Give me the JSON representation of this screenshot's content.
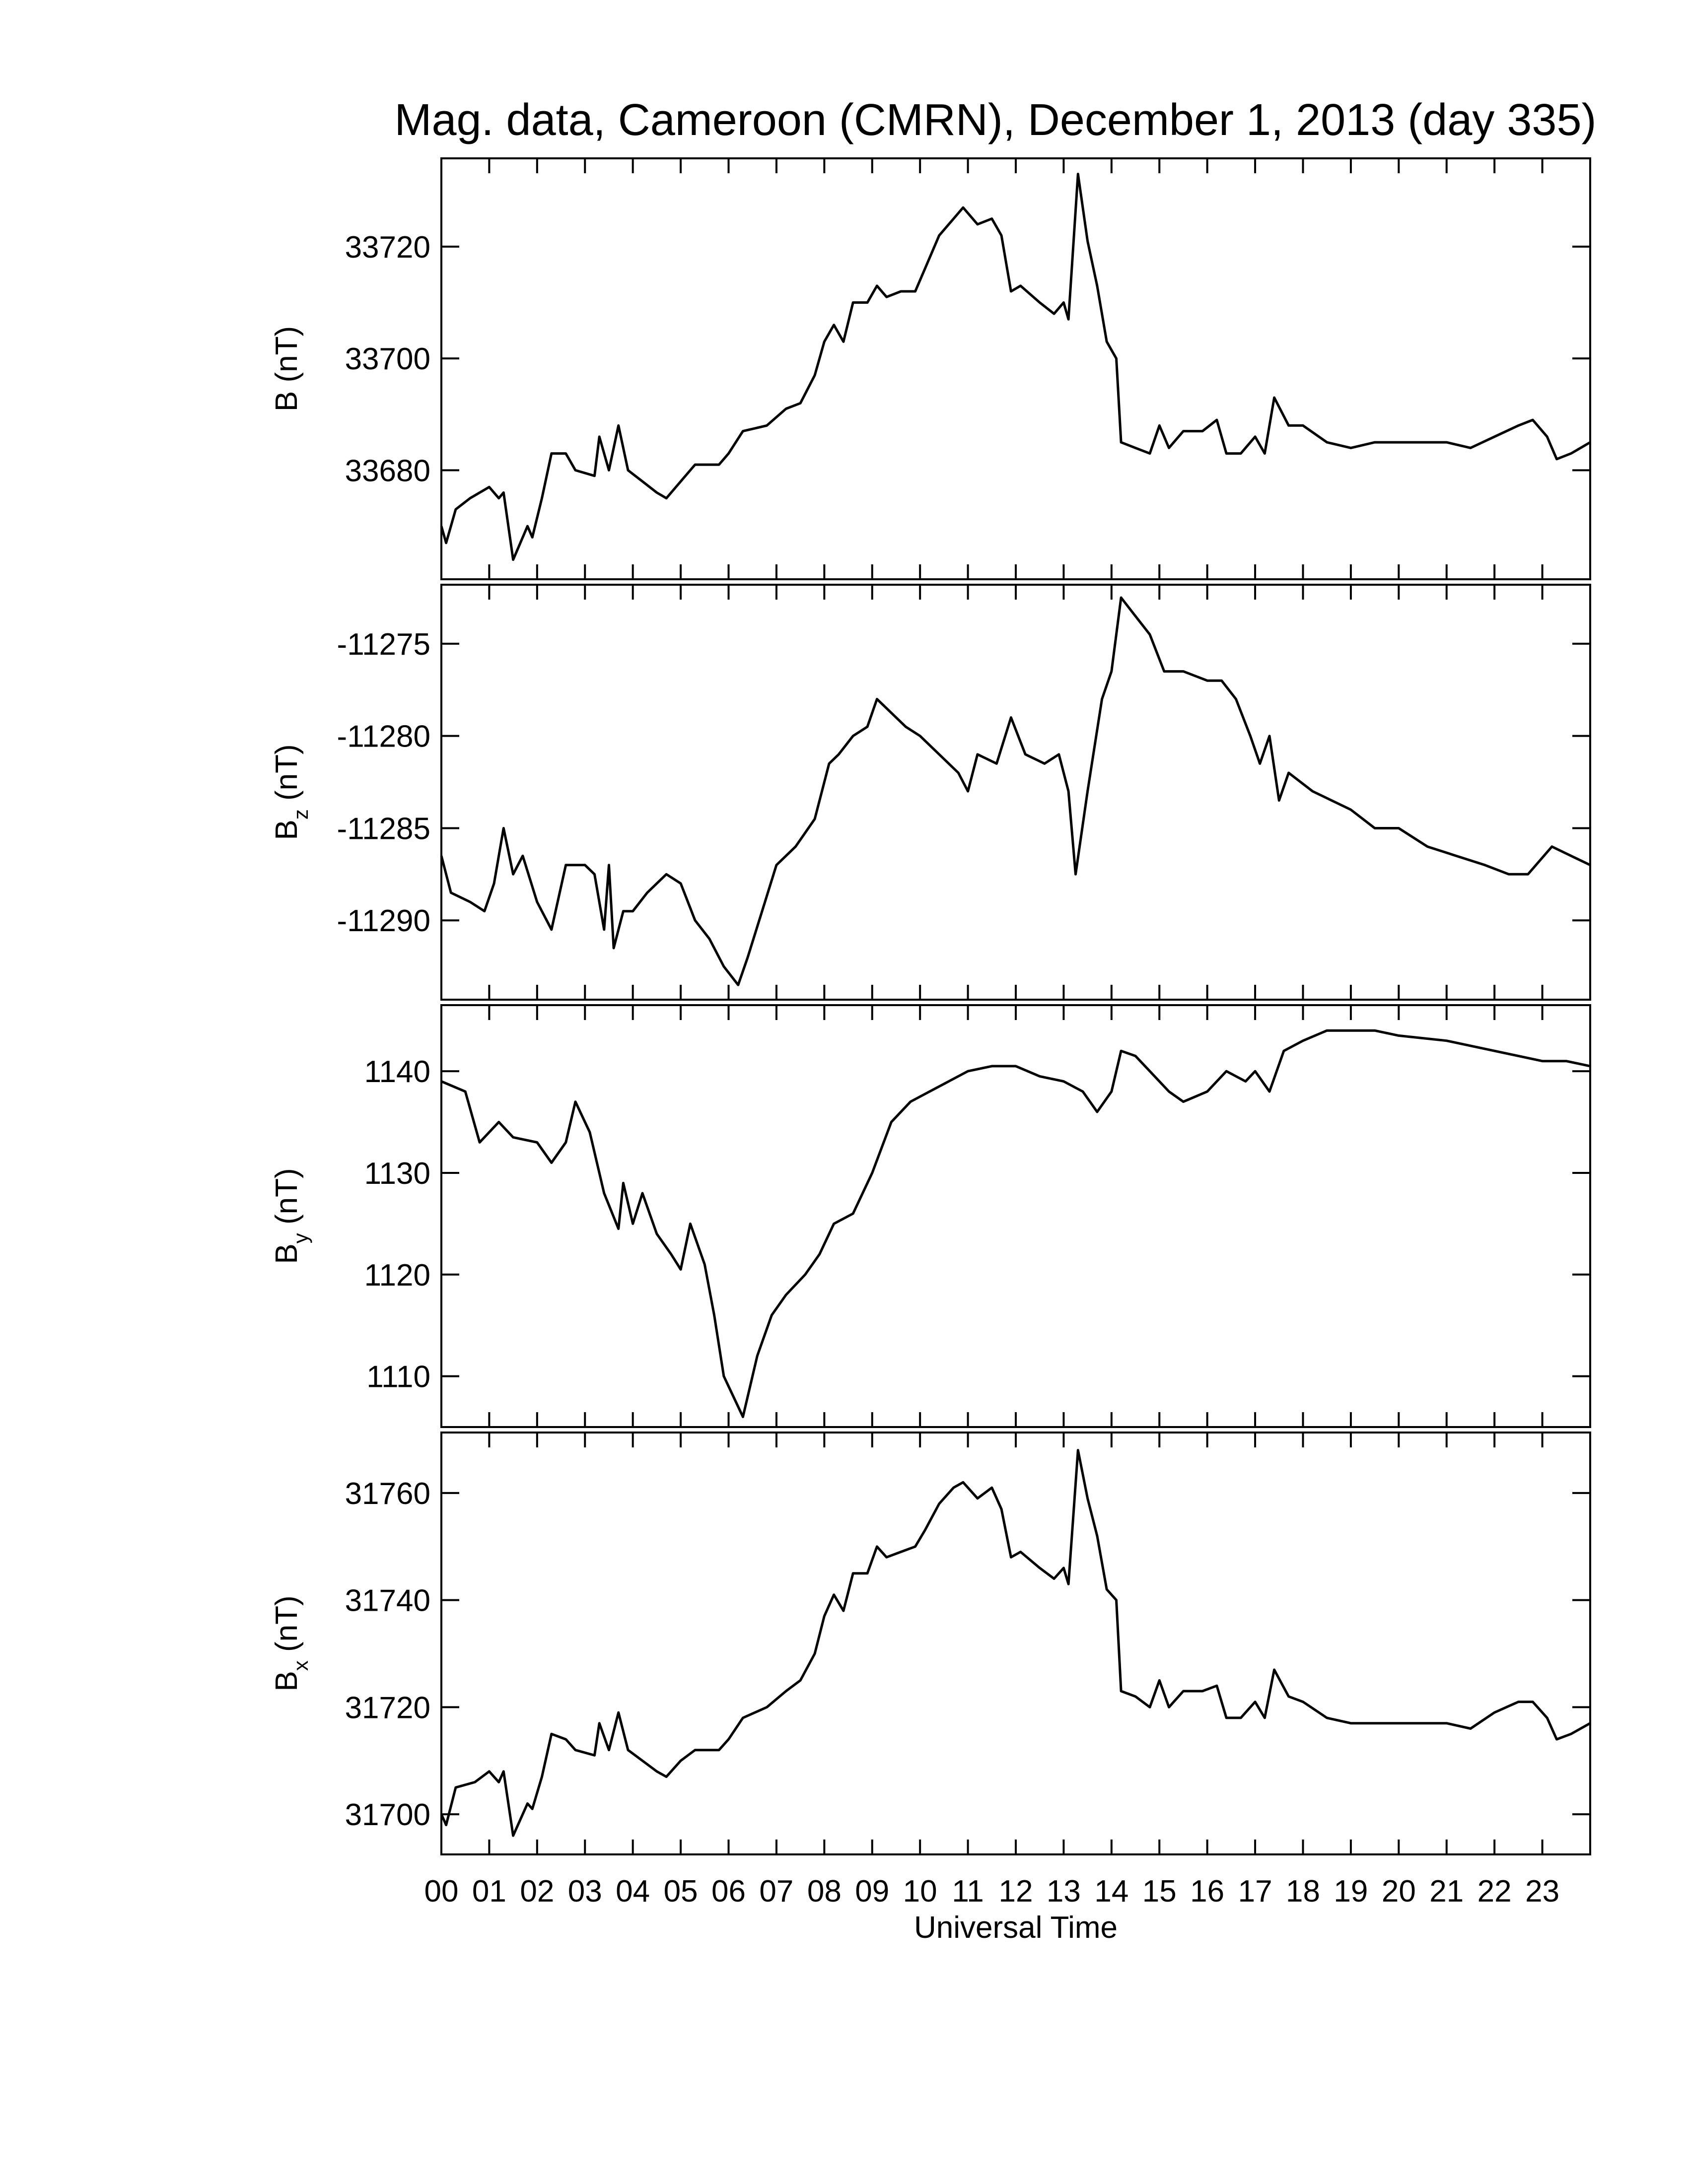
{
  "chart_data": [
    {
      "type": "line",
      "title": "Mag. data, Cameroon (CMRN), December 1, 2013 (day 335)",
      "ylabel": {
        "base": "B",
        "rest": " (nT)"
      },
      "color": "#000000",
      "xlim": [
        0,
        24
      ],
      "xticks": [
        {
          "value": 0,
          "label": "00"
        },
        {
          "value": 1,
          "label": "01"
        },
        {
          "value": 2,
          "label": "02"
        },
        {
          "value": 3,
          "label": "03"
        },
        {
          "value": 4,
          "label": "04"
        },
        {
          "value": 5,
          "label": "05"
        },
        {
          "value": 6,
          "label": "06"
        },
        {
          "value": 7,
          "label": "07"
        },
        {
          "value": 8,
          "label": "08"
        },
        {
          "value": 9,
          "label": "09"
        },
        10,
        11,
        12,
        13,
        14,
        15,
        16,
        17,
        18,
        19,
        20,
        21,
        22,
        23
      ],
      "ylim": [
        33660.5,
        33735.8
      ],
      "yticks": [
        33680,
        33700,
        33720
      ],
      "x": [
        0,
        0.1,
        0.3,
        0.6,
        1.0,
        1.2,
        1.3,
        1.5,
        1.8,
        1.9,
        2.1,
        2.3,
        2.6,
        2.8,
        3.2,
        3.3,
        3.5,
        3.7,
        3.9,
        4.2,
        4.5,
        4.7,
        5.0,
        5.3,
        5.8,
        6.0,
        6.3,
        6.8,
        7.2,
        7.5,
        7.8,
        8.0,
        8.2,
        8.4,
        8.6,
        8.9,
        9.1,
        9.3,
        9.6,
        9.9,
        10.1,
        10.4,
        10.7,
        10.9,
        11.2,
        11.5,
        11.7,
        11.9,
        12.1,
        12.5,
        12.8,
        13.0,
        13.1,
        13.3,
        13.5,
        13.7,
        13.9,
        14.1,
        14.2,
        14.5,
        14.8,
        15.0,
        15.2,
        15.5,
        15.9,
        16.2,
        16.4,
        16.7,
        17.0,
        17.2,
        17.4,
        17.7,
        18.0,
        18.5,
        19.0,
        19.5,
        20.0,
        21.0,
        21.5,
        22.0,
        22.5,
        22.8,
        23.1,
        23.3,
        23.6,
        24.0
      ],
      "values": [
        33670,
        33667,
        33673,
        33675,
        33677,
        33675,
        33676,
        33664,
        33670,
        33668,
        33675,
        33683,
        33683,
        33680,
        33679,
        33686,
        33680,
        33688,
        33680,
        33678,
        33676,
        33675,
        33678,
        33681,
        33681,
        33683,
        33687,
        33688,
        33691,
        33692,
        33697,
        33703,
        33706,
        33703,
        33710,
        33710,
        33713,
        33711,
        33712,
        33712,
        33716,
        33722,
        33725,
        33727,
        33724,
        33725,
        33722,
        33712,
        33713,
        33710,
        33708,
        33710,
        33707,
        33733,
        33721,
        33713,
        33703,
        33700,
        33685,
        33684,
        33683,
        33688,
        33684,
        33687,
        33687,
        33689,
        33683,
        33683,
        33686,
        33683,
        33693,
        33688,
        33688,
        33685,
        33684,
        33685,
        33685,
        33685,
        33684,
        33686,
        33688,
        33689,
        33686,
        33682,
        33683,
        33685
      ]
    },
    {
      "type": "line",
      "ylabel": {
        "base": "B",
        "sub": "z",
        "rest": " (nT)"
      },
      "color": "#000000",
      "xlim": [
        0,
        24
      ],
      "xticks": [
        0,
        1,
        2,
        3,
        4,
        5,
        6,
        7,
        8,
        9,
        10,
        11,
        12,
        13,
        14,
        15,
        16,
        17,
        18,
        19,
        20,
        21,
        22,
        23
      ],
      "ylim": [
        -11294.3,
        -11271.8
      ],
      "yticks": [
        -11290,
        -11285,
        -11280,
        -11275
      ],
      "x": [
        0,
        0.2,
        0.6,
        0.9,
        1.1,
        1.3,
        1.5,
        1.7,
        2.0,
        2.3,
        2.6,
        3.0,
        3.2,
        3.4,
        3.5,
        3.6,
        3.8,
        4.0,
        4.3,
        4.7,
        5.0,
        5.3,
        5.6,
        5.9,
        6.2,
        6.4,
        6.7,
        7.0,
        7.4,
        7.8,
        8.1,
        8.3,
        8.6,
        8.9,
        9.1,
        9.3,
        9.7,
        10.0,
        10.4,
        10.8,
        11.0,
        11.2,
        11.6,
        11.9,
        12.2,
        12.6,
        12.9,
        13.1,
        13.25,
        13.5,
        13.8,
        14.0,
        14.2,
        14.5,
        14.8,
        15.1,
        15.5,
        16.0,
        16.3,
        16.6,
        16.9,
        17.1,
        17.3,
        17.5,
        17.7,
        18.2,
        18.6,
        19.0,
        19.5,
        20.0,
        20.6,
        21.2,
        21.8,
        22.3,
        22.7,
        23.2,
        23.6,
        24.0
      ],
      "values": [
        -11286.5,
        -11288.5,
        -11289,
        -11289.5,
        -11288,
        -11285,
        -11287.5,
        -11286.5,
        -11289,
        -11290.5,
        -11287,
        -11287,
        -11287.5,
        -11290.5,
        -11287,
        -11291.5,
        -11289.5,
        -11289.5,
        -11288.5,
        -11287.5,
        -11288,
        -11290,
        -11291,
        -11292.5,
        -11293.5,
        -11292,
        -11289.5,
        -11287,
        -11286,
        -11284.5,
        -11281.5,
        -11281,
        -11280,
        -11279.5,
        -11278,
        -11278.5,
        -11279.5,
        -11280,
        -11281,
        -11282,
        -11283,
        -11281,
        -11281.5,
        -11279,
        -11281,
        -11281.5,
        -11281,
        -11283,
        -11287.5,
        -11283,
        -11278,
        -11276.5,
        -11272.5,
        -11273.5,
        -11274.5,
        -11276.5,
        -11276.5,
        -11277,
        -11277,
        -11278,
        -11280,
        -11281.5,
        -11280,
        -11283.5,
        -11282,
        -11283,
        -11283.5,
        -11284,
        -11285,
        -11285,
        -11286,
        -11286.5,
        -11287,
        -11287.5,
        -11287.5,
        -11286,
        -11286.5,
        -11287
      ]
    },
    {
      "type": "line",
      "ylabel": {
        "base": "B",
        "sub": "y",
        "rest": " (nT)"
      },
      "color": "#000000",
      "xlim": [
        0,
        24
      ],
      "xticks": [
        0,
        1,
        2,
        3,
        4,
        5,
        6,
        7,
        8,
        9,
        10,
        11,
        12,
        13,
        14,
        15,
        16,
        17,
        18,
        19,
        20,
        21,
        22,
        23
      ],
      "ylim": [
        1105,
        1146.5
      ],
      "yticks": [
        1110,
        1120,
        1130,
        1140
      ],
      "x": [
        0,
        0.5,
        0.8,
        1.2,
        1.5,
        2.0,
        2.3,
        2.6,
        2.8,
        3.1,
        3.4,
        3.7,
        3.8,
        4.0,
        4.2,
        4.5,
        4.8,
        5.0,
        5.2,
        5.5,
        5.7,
        5.9,
        6.2,
        6.3,
        6.6,
        6.9,
        7.2,
        7.6,
        7.9,
        8.2,
        8.6,
        9.0,
        9.4,
        9.8,
        10.2,
        10.6,
        11.0,
        11.5,
        12.0,
        12.5,
        13.0,
        13.4,
        13.7,
        14.0,
        14.2,
        14.5,
        14.8,
        15.2,
        15.5,
        16.0,
        16.4,
        16.8,
        17.0,
        17.3,
        17.6,
        18.0,
        18.5,
        19.0,
        19.5,
        20.0,
        21.0,
        21.5,
        22.0,
        22.5,
        23.0,
        23.5,
        24.0
      ],
      "values": [
        1139,
        1138,
        1133,
        1135,
        1133.5,
        1133,
        1131,
        1133,
        1137,
        1134,
        1128,
        1124.5,
        1129,
        1125,
        1128,
        1124,
        1122,
        1120.5,
        1125,
        1121,
        1116,
        1110,
        1107,
        1106,
        1112,
        1116,
        1118,
        1120,
        1122,
        1125,
        1126,
        1130,
        1135,
        1137,
        1138,
        1139,
        1140,
        1140.5,
        1140.5,
        1139.5,
        1139,
        1138,
        1136,
        1138,
        1142,
        1141.5,
        1140,
        1138,
        1137,
        1138,
        1140,
        1139,
        1140,
        1138,
        1142,
        1143,
        1144,
        1144,
        1144,
        1143.5,
        1143,
        1142.5,
        1142,
        1141.5,
        1141,
        1141,
        1140.5
      ]
    },
    {
      "type": "line",
      "ylabel": {
        "base": "B",
        "sub": "x",
        "rest": " (nT)"
      },
      "color": "#000000",
      "xlabel": "Universal Time",
      "xlim": [
        0,
        24
      ],
      "xticks": [
        {
          "value": 0,
          "label": "00"
        },
        {
          "value": 1,
          "label": "01"
        },
        {
          "value": 2,
          "label": "02"
        },
        {
          "value": 3,
          "label": "03"
        },
        {
          "value": 4,
          "label": "04"
        },
        {
          "value": 5,
          "label": "05"
        },
        {
          "value": 6,
          "label": "06"
        },
        {
          "value": 7,
          "label": "07"
        },
        {
          "value": 8,
          "label": "08"
        },
        {
          "value": 9,
          "label": "09"
        },
        10,
        11,
        12,
        13,
        14,
        15,
        16,
        17,
        18,
        19,
        20,
        21,
        22,
        23
      ],
      "ylim": [
        31692.5,
        31771.3
      ],
      "yticks": [
        31700,
        31720,
        31740,
        31760
      ],
      "x": [
        0,
        0.1,
        0.3,
        0.7,
        1.0,
        1.2,
        1.3,
        1.5,
        1.8,
        1.9,
        2.1,
        2.3,
        2.6,
        2.8,
        3.2,
        3.3,
        3.5,
        3.7,
        3.9,
        4.2,
        4.5,
        4.7,
        5.0,
        5.3,
        5.8,
        6.0,
        6.3,
        6.8,
        7.2,
        7.5,
        7.8,
        8.0,
        8.2,
        8.4,
        8.6,
        8.9,
        9.1,
        9.3,
        9.6,
        9.9,
        10.1,
        10.4,
        10.7,
        10.9,
        11.2,
        11.5,
        11.7,
        11.9,
        12.1,
        12.5,
        12.8,
        13.0,
        13.1,
        13.3,
        13.5,
        13.7,
        13.9,
        14.1,
        14.2,
        14.5,
        14.8,
        15.0,
        15.2,
        15.5,
        15.9,
        16.2,
        16.4,
        16.7,
        17.0,
        17.2,
        17.4,
        17.7,
        18.0,
        18.5,
        19.0,
        19.5,
        20.0,
        21.0,
        21.5,
        22.0,
        22.5,
        22.8,
        23.1,
        23.3,
        23.6,
        24.0
      ],
      "values": [
        31700,
        31698,
        31705,
        31706,
        31708,
        31706,
        31708,
        31696,
        31702,
        31701,
        31707,
        31715,
        31714,
        31712,
        31711,
        31717,
        31712,
        31719,
        31712,
        31710,
        31708,
        31707,
        31710,
        31712,
        31712,
        31714,
        31718,
        31720,
        31723,
        31725,
        31730,
        31737,
        31741,
        31738,
        31745,
        31745,
        31750,
        31748,
        31749,
        31750,
        31753,
        31758,
        31761,
        31762,
        31759,
        31761,
        31757,
        31748,
        31749,
        31746,
        31744,
        31746,
        31743,
        31768,
        31759,
        31752,
        31742,
        31740,
        31723,
        31722,
        31720,
        31725,
        31720,
        31723,
        31723,
        31724,
        31718,
        31718,
        31721,
        31718,
        31727,
        31722,
        31721,
        31718,
        31717,
        31717,
        31717,
        31717,
        31716,
        31719,
        31721,
        31721,
        31718,
        31714,
        31715,
        31717
      ]
    }
  ]
}
